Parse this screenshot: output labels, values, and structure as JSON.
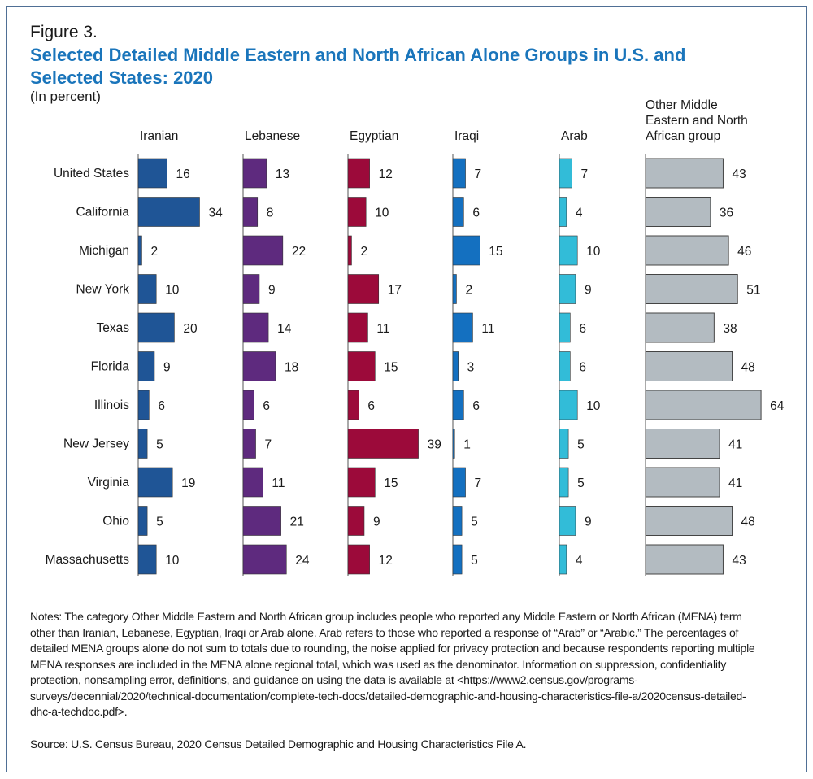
{
  "figure_label": "Figure 3.",
  "title": "Selected Detailed Middle Eastern and North African Alone Groups in U.S. and Selected States: 2020",
  "subtitle": "(In percent)",
  "chart_data": {
    "type": "bar",
    "orientation": "horizontal",
    "small_multiples": true,
    "categories": [
      "United States",
      "California",
      "Michigan",
      "New York",
      "Texas",
      "Florida",
      "Illinois",
      "New Jersey",
      "Virginia",
      "Ohio",
      "Massachusetts"
    ],
    "series": [
      {
        "name": "Iranian",
        "color": "#1f5596",
        "values": [
          16,
          34,
          2,
          10,
          20,
          9,
          6,
          5,
          19,
          5,
          10
        ]
      },
      {
        "name": "Lebanese",
        "color": "#5e2a7e",
        "values": [
          13,
          8,
          22,
          9,
          14,
          18,
          6,
          7,
          11,
          21,
          24
        ]
      },
      {
        "name": "Egyptian",
        "color": "#9c0a3a",
        "values": [
          12,
          10,
          2,
          17,
          11,
          15,
          6,
          39,
          15,
          9,
          12
        ]
      },
      {
        "name": "Iraqi",
        "color": "#1470c0",
        "values": [
          7,
          6,
          15,
          2,
          11,
          3,
          6,
          1,
          7,
          5,
          5
        ]
      },
      {
        "name": "Arab",
        "color": "#32bcd8",
        "values": [
          7,
          4,
          10,
          9,
          6,
          6,
          10,
          5,
          5,
          9,
          4
        ]
      },
      {
        "name": "Other Middle Eastern and North African group",
        "color": "#b3bbc1",
        "values": [
          43,
          36,
          46,
          51,
          38,
          48,
          64,
          41,
          41,
          48,
          43
        ]
      }
    ],
    "data_labels": true,
    "grid": false
  },
  "notes": "Notes: The category Other Middle Eastern and North African group includes people who reported any Middle Eastern or North African (MENA) term other than Iranian, Lebanese, Egyptian, Iraqi or Arab alone. Arab refers to those who reported a response of “Arab” or “Arabic.” The percentages of detailed MENA groups alone do not sum to totals due to rounding, the noise applied for privacy protection and because respondents reporting multiple MENA responses are included in the MENA alone regional total, which was used as the denominator. Information on suppression, confidentiality protection, nonsampling error, definitions, and guidance on using the data is available at <https://www2.census.gov/programs-surveys/decennial/2020/technical-documentation/complete-tech-docs/detailed-demographic-and-housing-characteristics-file-a/2020census-detailed-dhc-a-techdoc.pdf>.",
  "source": "Source: U.S. Census Bureau, 2020 Census Detailed Demographic and Housing Characteristics File A."
}
